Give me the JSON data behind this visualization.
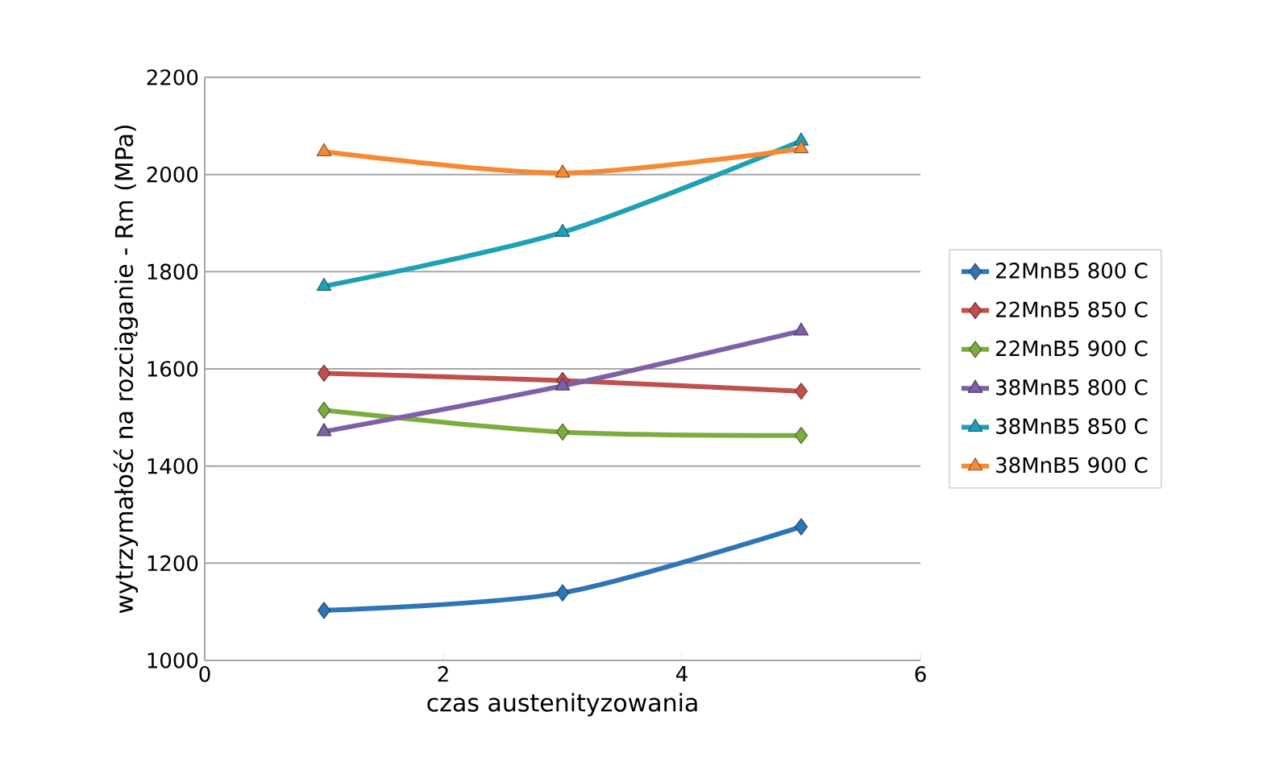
{
  "chart_data": {
    "type": "line",
    "xlabel": "czas austenityzowania",
    "ylabel": "wytrzymałość na rozciąganie - Rm (MPa)",
    "x": [
      1,
      3,
      5
    ],
    "series": [
      {
        "name": "22MnB5 800 C",
        "color": "#2e75b6",
        "marker": "diamond",
        "values": [
          1103,
          1139,
          1275
        ]
      },
      {
        "name": "22MnB5 850 C",
        "color": "#c0504d",
        "marker": "diamond",
        "values": [
          1591,
          1576,
          1554
        ]
      },
      {
        "name": "22MnB5 900 C",
        "color": "#7cac3e",
        "marker": "diamond",
        "values": [
          1515,
          1470,
          1463
        ]
      },
      {
        "name": "38MnB5 800 C",
        "color": "#7f5fa6",
        "marker": "triangle",
        "values": [
          1471,
          1565,
          1678
        ]
      },
      {
        "name": "38MnB5 850 C",
        "color": "#1fa0b5",
        "marker": "triangle",
        "values": [
          1770,
          1881,
          2069
        ]
      },
      {
        "name": "38MnB5 900 C",
        "color": "#f58a35",
        "marker": "triangle",
        "values": [
          2047,
          2003,
          2053
        ]
      }
    ],
    "xlim": [
      0,
      6
    ],
    "xticks": [
      0,
      2,
      4,
      6
    ],
    "ylim": [
      1000,
      2200
    ],
    "yticks": [
      1000,
      1200,
      1400,
      1600,
      1800,
      2000,
      2200
    ],
    "grid": "y",
    "legend": "right",
    "line_style": "solid"
  }
}
